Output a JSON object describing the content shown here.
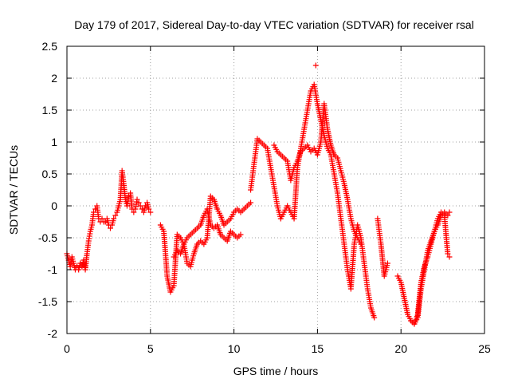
{
  "chart_data": {
    "type": "scatter",
    "title": "Day 179 of 2017, Sidereal Day-to-day VTEC variation (SDTVAR) for receiver rsal",
    "xlabel": "GPS time / hours",
    "ylabel": "SDTVAR / TECUs",
    "xlim": [
      0,
      25
    ],
    "ylim": [
      -2,
      2.5
    ],
    "x_ticks": [
      "0",
      "5",
      "10",
      "15",
      "20",
      "25"
    ],
    "y_ticks": [
      "-2",
      "-1.5",
      "-1",
      "-0.5",
      "0",
      "0.5",
      "1",
      "1.5",
      "2",
      "2.5"
    ],
    "grid": true,
    "marker": "plus",
    "colors": {
      "series": "#ff0000",
      "axis": "#000000",
      "grid": "#a0a0a0"
    },
    "series": [
      {
        "x": [
          0.0,
          0.1,
          0.2,
          0.3,
          0.4,
          0.5,
          0.6,
          0.7,
          0.8,
          0.9,
          1.0,
          1.1,
          1.2,
          1.3,
          1.4,
          1.5,
          1.6,
          1.7,
          1.8,
          1.9,
          2.0,
          2.1,
          2.2,
          2.3,
          2.4,
          2.5,
          2.6,
          2.7,
          2.8,
          2.9,
          3.0,
          3.1,
          3.2,
          3.3,
          3.4,
          3.5,
          3.6,
          3.7,
          3.8,
          3.9,
          4.0,
          4.1,
          4.2,
          4.3,
          4.4,
          4.5,
          4.6,
          4.7,
          4.8,
          4.9,
          5.0
        ],
        "y": [
          -0.75,
          -0.85,
          -0.95,
          -0.8,
          -0.9,
          -1.0,
          -0.95,
          -1.0,
          -0.9,
          -0.95,
          -0.85,
          -1.0,
          -0.75,
          -0.55,
          -0.4,
          -0.3,
          -0.1,
          -0.05,
          0.0,
          -0.2,
          -0.25,
          -0.2,
          -0.25,
          -0.25,
          -0.2,
          -0.3,
          -0.35,
          -0.3,
          -0.2,
          -0.15,
          -0.1,
          0.0,
          0.1,
          0.55,
          0.35,
          0.1,
          0.0,
          0.15,
          0.2,
          -0.05,
          -0.1,
          -0.05,
          0.1,
          0.05,
          0.0,
          -0.05,
          -0.1,
          0.0,
          0.05,
          -0.05,
          -0.1
        ]
      },
      {
        "x": [
          5.6,
          5.8,
          6.0,
          6.2,
          6.4,
          6.6,
          6.8,
          7.0,
          7.2,
          7.4,
          7.6,
          7.8,
          8.0,
          8.2,
          8.4,
          8.6,
          8.8,
          9.0,
          9.2,
          9.4,
          9.6,
          9.8,
          10.0,
          10.2,
          10.4,
          10.6,
          10.8,
          11.0
        ],
        "y": [
          -0.3,
          -0.4,
          -1.1,
          -1.35,
          -1.25,
          -0.45,
          -0.5,
          -0.6,
          -0.9,
          -0.95,
          -0.75,
          -0.6,
          -0.55,
          -0.6,
          -0.5,
          0.15,
          0.1,
          -0.05,
          -0.15,
          -0.3,
          -0.25,
          -0.2,
          -0.1,
          -0.05,
          -0.1,
          -0.05,
          0.0,
          0.05
        ]
      },
      {
        "x": [
          6.4,
          6.6,
          6.8,
          7.0,
          7.2,
          7.4,
          7.6,
          7.8,
          8.0,
          8.2,
          8.4,
          8.6,
          8.8,
          9.0,
          9.2,
          9.4,
          9.6,
          9.8,
          10.0,
          10.2,
          10.4
        ],
        "y": [
          -0.8,
          -0.7,
          -0.75,
          -0.6,
          -0.5,
          -0.45,
          -0.4,
          -0.35,
          -0.3,
          -0.15,
          -0.05,
          -0.3,
          -0.35,
          -0.3,
          -0.45,
          -0.5,
          -0.55,
          -0.4,
          -0.45,
          -0.5,
          -0.45
        ]
      },
      {
        "x": [
          11.0,
          11.2,
          11.4,
          11.6,
          11.8,
          12.0,
          12.2,
          12.4,
          12.6,
          12.8,
          13.0,
          13.2,
          13.4,
          13.6,
          13.8,
          14.0,
          14.2,
          14.4,
          14.6,
          14.8,
          15.0,
          15.2,
          15.4,
          15.6,
          15.8,
          16.0,
          16.2,
          16.4,
          16.6,
          16.8,
          17.0,
          17.2,
          17.4,
          17.6,
          17.8,
          18.0,
          18.2,
          18.4
        ],
        "y": [
          0.25,
          0.65,
          1.05,
          1.0,
          0.95,
          0.9,
          0.6,
          0.3,
          0.0,
          -0.2,
          -0.1,
          0.0,
          -0.1,
          -0.2,
          0.6,
          0.9,
          1.2,
          1.5,
          1.8,
          1.9,
          1.6,
          1.35,
          1.1,
          0.9,
          0.8,
          0.5,
          0.2,
          -0.2,
          -0.6,
          -1.0,
          -1.3,
          -0.6,
          -0.3,
          -0.5,
          -0.9,
          -1.3,
          -1.6,
          -1.75
        ]
      },
      {
        "x": [
          12.4,
          12.6,
          12.8,
          13.0,
          13.2,
          13.4,
          13.6,
          13.8,
          14.0,
          14.2,
          14.4,
          14.6,
          14.8,
          15.0,
          15.2,
          15.4,
          15.6,
          15.8,
          16.0,
          16.2,
          16.4,
          16.6,
          16.8,
          17.0,
          17.2,
          17.4,
          17.6
        ],
        "y": [
          0.95,
          0.85,
          0.8,
          0.75,
          0.7,
          0.4,
          0.6,
          0.7,
          0.85,
          0.9,
          0.95,
          0.85,
          0.9,
          0.8,
          1.0,
          1.6,
          1.2,
          0.95,
          0.8,
          0.75,
          0.55,
          0.35,
          0.1,
          -0.2,
          -0.4,
          -0.5,
          -0.6
        ]
      },
      {
        "x": [
          14.9,
          18.6,
          18.8,
          19.0,
          19.2
        ],
        "y": [
          2.2,
          -0.2,
          -0.6,
          -1.1,
          -0.9
        ]
      },
      {
        "x": [
          19.8,
          20.0,
          20.2,
          20.4,
          20.6,
          20.8,
          21.0,
          21.2,
          21.4,
          21.6,
          21.8,
          22.0,
          22.2,
          22.4,
          22.6,
          22.8,
          22.9
        ],
        "y": [
          -1.1,
          -1.2,
          -1.45,
          -1.7,
          -1.8,
          -1.85,
          -1.7,
          -1.2,
          -0.95,
          -0.8,
          -0.6,
          -0.4,
          -0.3,
          -0.15,
          -0.1,
          -0.15,
          -0.1
        ]
      },
      {
        "x": [
          20.6,
          20.8,
          21.0,
          21.2,
          21.4,
          21.6,
          21.8,
          22.0,
          22.2,
          22.4,
          22.6,
          22.8,
          22.9
        ],
        "y": [
          -1.8,
          -1.85,
          -1.75,
          -1.3,
          -1.0,
          -0.7,
          -0.55,
          -0.4,
          -0.2,
          -0.1,
          -0.15,
          -0.75,
          -0.8
        ]
      }
    ]
  }
}
